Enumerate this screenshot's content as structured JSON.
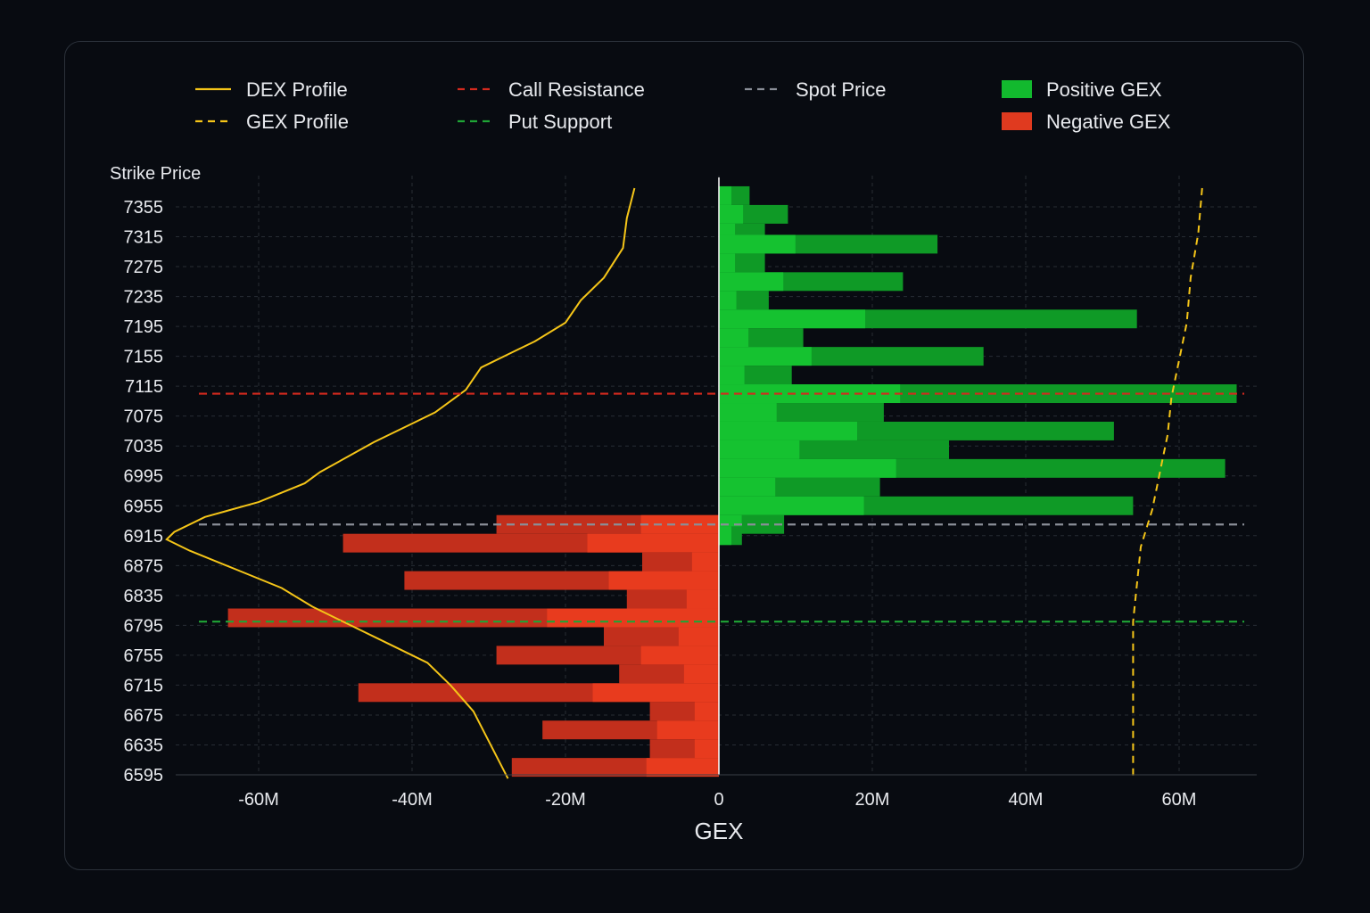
{
  "chart_data": {
    "type": "bar",
    "orientation": "horizontal",
    "xlabel": "GEX",
    "ylabel": "Strike Price",
    "xlim": [
      -72,
      67
    ],
    "ylim": [
      6595,
      7380
    ],
    "x_ticks": [
      -60,
      -40,
      -20,
      0,
      20,
      40,
      60
    ],
    "x_tick_labels": [
      "-60M",
      "-40M",
      "-20M",
      "0",
      "20M",
      "40M",
      "60M"
    ],
    "y_ticks": [
      7355,
      7315,
      7275,
      7235,
      7195,
      7155,
      7115,
      7075,
      7035,
      6995,
      6955,
      6915,
      6875,
      6835,
      6795,
      6755,
      6715,
      6675,
      6635,
      6595
    ],
    "grid": true,
    "legend_placement": "top",
    "legend": [
      {
        "label": "DEX Profile",
        "style": "solid-line",
        "color": "#f5c518"
      },
      {
        "label": "GEX Profile",
        "style": "dashed-line",
        "color": "#f5c518"
      },
      {
        "label": "Call Resistance",
        "style": "dashed-line",
        "color": "#d42a1e"
      },
      {
        "label": "Put Support",
        "style": "dashed-line",
        "color": "#1fa536"
      },
      {
        "label": "Spot Price",
        "style": "dashed-line",
        "color": "#8a8f98"
      },
      {
        "label": "Positive GEX",
        "style": "box",
        "color": "#12b92e"
      },
      {
        "label": "Negative GEX",
        "style": "box",
        "color": "#e03a1f"
      }
    ],
    "colors": {
      "positive_outer": "#0f9a26",
      "positive_inner": "#16c933",
      "negative_outer": "#c22f1c",
      "negative_inner": "#ee3d1e",
      "dex": "#f5c518",
      "gex": "#f5c518",
      "call_resistance": "#d42a1e",
      "put_support": "#1fa536",
      "spot": "#8a8f98",
      "zero_line": "#ffffff",
      "grid": "#272c34"
    },
    "levels": {
      "call_resistance": 7105,
      "spot_price": 6930,
      "put_support": 6800
    },
    "gex_positive": [
      {
        "strike": 7370,
        "value": 4
      },
      {
        "strike": 7345,
        "value": 9
      },
      {
        "strike": 7320,
        "value": 6
      },
      {
        "strike": 7305,
        "value": 28.5
      },
      {
        "strike": 7280,
        "value": 6
      },
      {
        "strike": 7255,
        "value": 24
      },
      {
        "strike": 7230,
        "value": 6.5
      },
      {
        "strike": 7205,
        "value": 54.5
      },
      {
        "strike": 7180,
        "value": 11
      },
      {
        "strike": 7155,
        "value": 34.5
      },
      {
        "strike": 7130,
        "value": 9.5
      },
      {
        "strike": 7105,
        "value": 67.5
      },
      {
        "strike": 7080,
        "value": 21.5
      },
      {
        "strike": 7055,
        "value": 51.5
      },
      {
        "strike": 7030,
        "value": 30
      },
      {
        "strike": 7005,
        "value": 66
      },
      {
        "strike": 6980,
        "value": 21
      },
      {
        "strike": 6955,
        "value": 54
      },
      {
        "strike": 6930,
        "value": 8.5
      },
      {
        "strike": 6915,
        "value": 3
      }
    ],
    "gex_negative": [
      {
        "strike": 6930,
        "value": -29
      },
      {
        "strike": 6905,
        "value": -49
      },
      {
        "strike": 6880,
        "value": -10
      },
      {
        "strike": 6855,
        "value": -41
      },
      {
        "strike": 6830,
        "value": -12
      },
      {
        "strike": 6805,
        "value": -64
      },
      {
        "strike": 6780,
        "value": -15
      },
      {
        "strike": 6755,
        "value": -29
      },
      {
        "strike": 6730,
        "value": -13
      },
      {
        "strike": 6705,
        "value": -47
      },
      {
        "strike": 6680,
        "value": -9
      },
      {
        "strike": 6655,
        "value": -23
      },
      {
        "strike": 6630,
        "value": -9
      },
      {
        "strike": 6605,
        "value": -27
      }
    ],
    "dex_profile": [
      {
        "strike": 7380,
        "value": -11
      },
      {
        "strike": 7340,
        "value": -12
      },
      {
        "strike": 7300,
        "value": -12.5
      },
      {
        "strike": 7260,
        "value": -15
      },
      {
        "strike": 7230,
        "value": -18
      },
      {
        "strike": 7200,
        "value": -20
      },
      {
        "strike": 7175,
        "value": -24
      },
      {
        "strike": 7160,
        "value": -27
      },
      {
        "strike": 7140,
        "value": -31
      },
      {
        "strike": 7110,
        "value": -33
      },
      {
        "strike": 7080,
        "value": -37
      },
      {
        "strike": 7065,
        "value": -40
      },
      {
        "strike": 7040,
        "value": -45
      },
      {
        "strike": 7000,
        "value": -52
      },
      {
        "strike": 6985,
        "value": -54
      },
      {
        "strike": 6960,
        "value": -60
      },
      {
        "strike": 6940,
        "value": -67
      },
      {
        "strike": 6920,
        "value": -71
      },
      {
        "strike": 6910,
        "value": -72
      },
      {
        "strike": 6895,
        "value": -69
      },
      {
        "strike": 6870,
        "value": -63
      },
      {
        "strike": 6845,
        "value": -57
      },
      {
        "strike": 6820,
        "value": -53
      },
      {
        "strike": 6795,
        "value": -48
      },
      {
        "strike": 6770,
        "value": -43
      },
      {
        "strike": 6745,
        "value": -38
      },
      {
        "strike": 6715,
        "value": -35
      },
      {
        "strike": 6680,
        "value": -32
      },
      {
        "strike": 6640,
        "value": -30
      },
      {
        "strike": 6600,
        "value": -28
      },
      {
        "strike": 6590,
        "value": -27.5
      }
    ],
    "gex_profile": [
      {
        "strike": 7380,
        "value": 63
      },
      {
        "strike": 7320,
        "value": 62.5
      },
      {
        "strike": 7260,
        "value": 61.5
      },
      {
        "strike": 7200,
        "value": 61
      },
      {
        "strike": 7150,
        "value": 60
      },
      {
        "strike": 7100,
        "value": 59
      },
      {
        "strike": 7050,
        "value": 58.5
      },
      {
        "strike": 7000,
        "value": 57.5
      },
      {
        "strike": 6950,
        "value": 56.5
      },
      {
        "strike": 6900,
        "value": 55
      },
      {
        "strike": 6850,
        "value": 54.5
      },
      {
        "strike": 6800,
        "value": 54
      },
      {
        "strike": 6750,
        "value": 54
      },
      {
        "strike": 6700,
        "value": 54
      },
      {
        "strike": 6640,
        "value": 54
      },
      {
        "strike": 6590,
        "value": 54
      }
    ]
  }
}
